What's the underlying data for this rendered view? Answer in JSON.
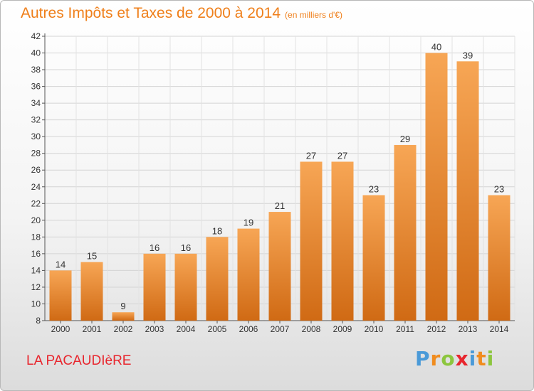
{
  "title": "Autres Impôts et Taxes de 2000 à 2014",
  "subtitle": "(en milliers d'€)",
  "place": "LA PACAUDIèRE",
  "logo": {
    "text": "Proxiti",
    "letters": [
      {
        "ch": "P",
        "color": "#4a9ad8"
      },
      {
        "ch": "r",
        "color": "#f08c1e"
      },
      {
        "ch": "o",
        "color": "#8cc63e"
      },
      {
        "ch": "x",
        "color": "#e8262e"
      },
      {
        "ch": "i",
        "color": "#4a9ad8"
      },
      {
        "ch": "t",
        "color": "#f08c1e"
      },
      {
        "ch": "i",
        "color": "#8cc63e"
      }
    ]
  },
  "colors": {
    "title": "#ef7f1a",
    "place": "#e8262e",
    "bar_light": "#f7a655",
    "bar_dark": "#d06a14"
  },
  "chart_data": {
    "type": "bar",
    "categories": [
      "2000",
      "2001",
      "2002",
      "2003",
      "2004",
      "2005",
      "2006",
      "2007",
      "2008",
      "2009",
      "2010",
      "2011",
      "2012",
      "2013",
      "2014"
    ],
    "values": [
      14,
      15,
      9,
      16,
      16,
      18,
      19,
      21,
      27,
      27,
      23,
      29,
      40,
      39,
      23
    ],
    "ylim": [
      8,
      42
    ],
    "yticks": [
      8,
      10,
      12,
      14,
      16,
      18,
      20,
      22,
      24,
      26,
      28,
      30,
      32,
      34,
      36,
      38,
      40,
      42
    ],
    "grid": true
  }
}
